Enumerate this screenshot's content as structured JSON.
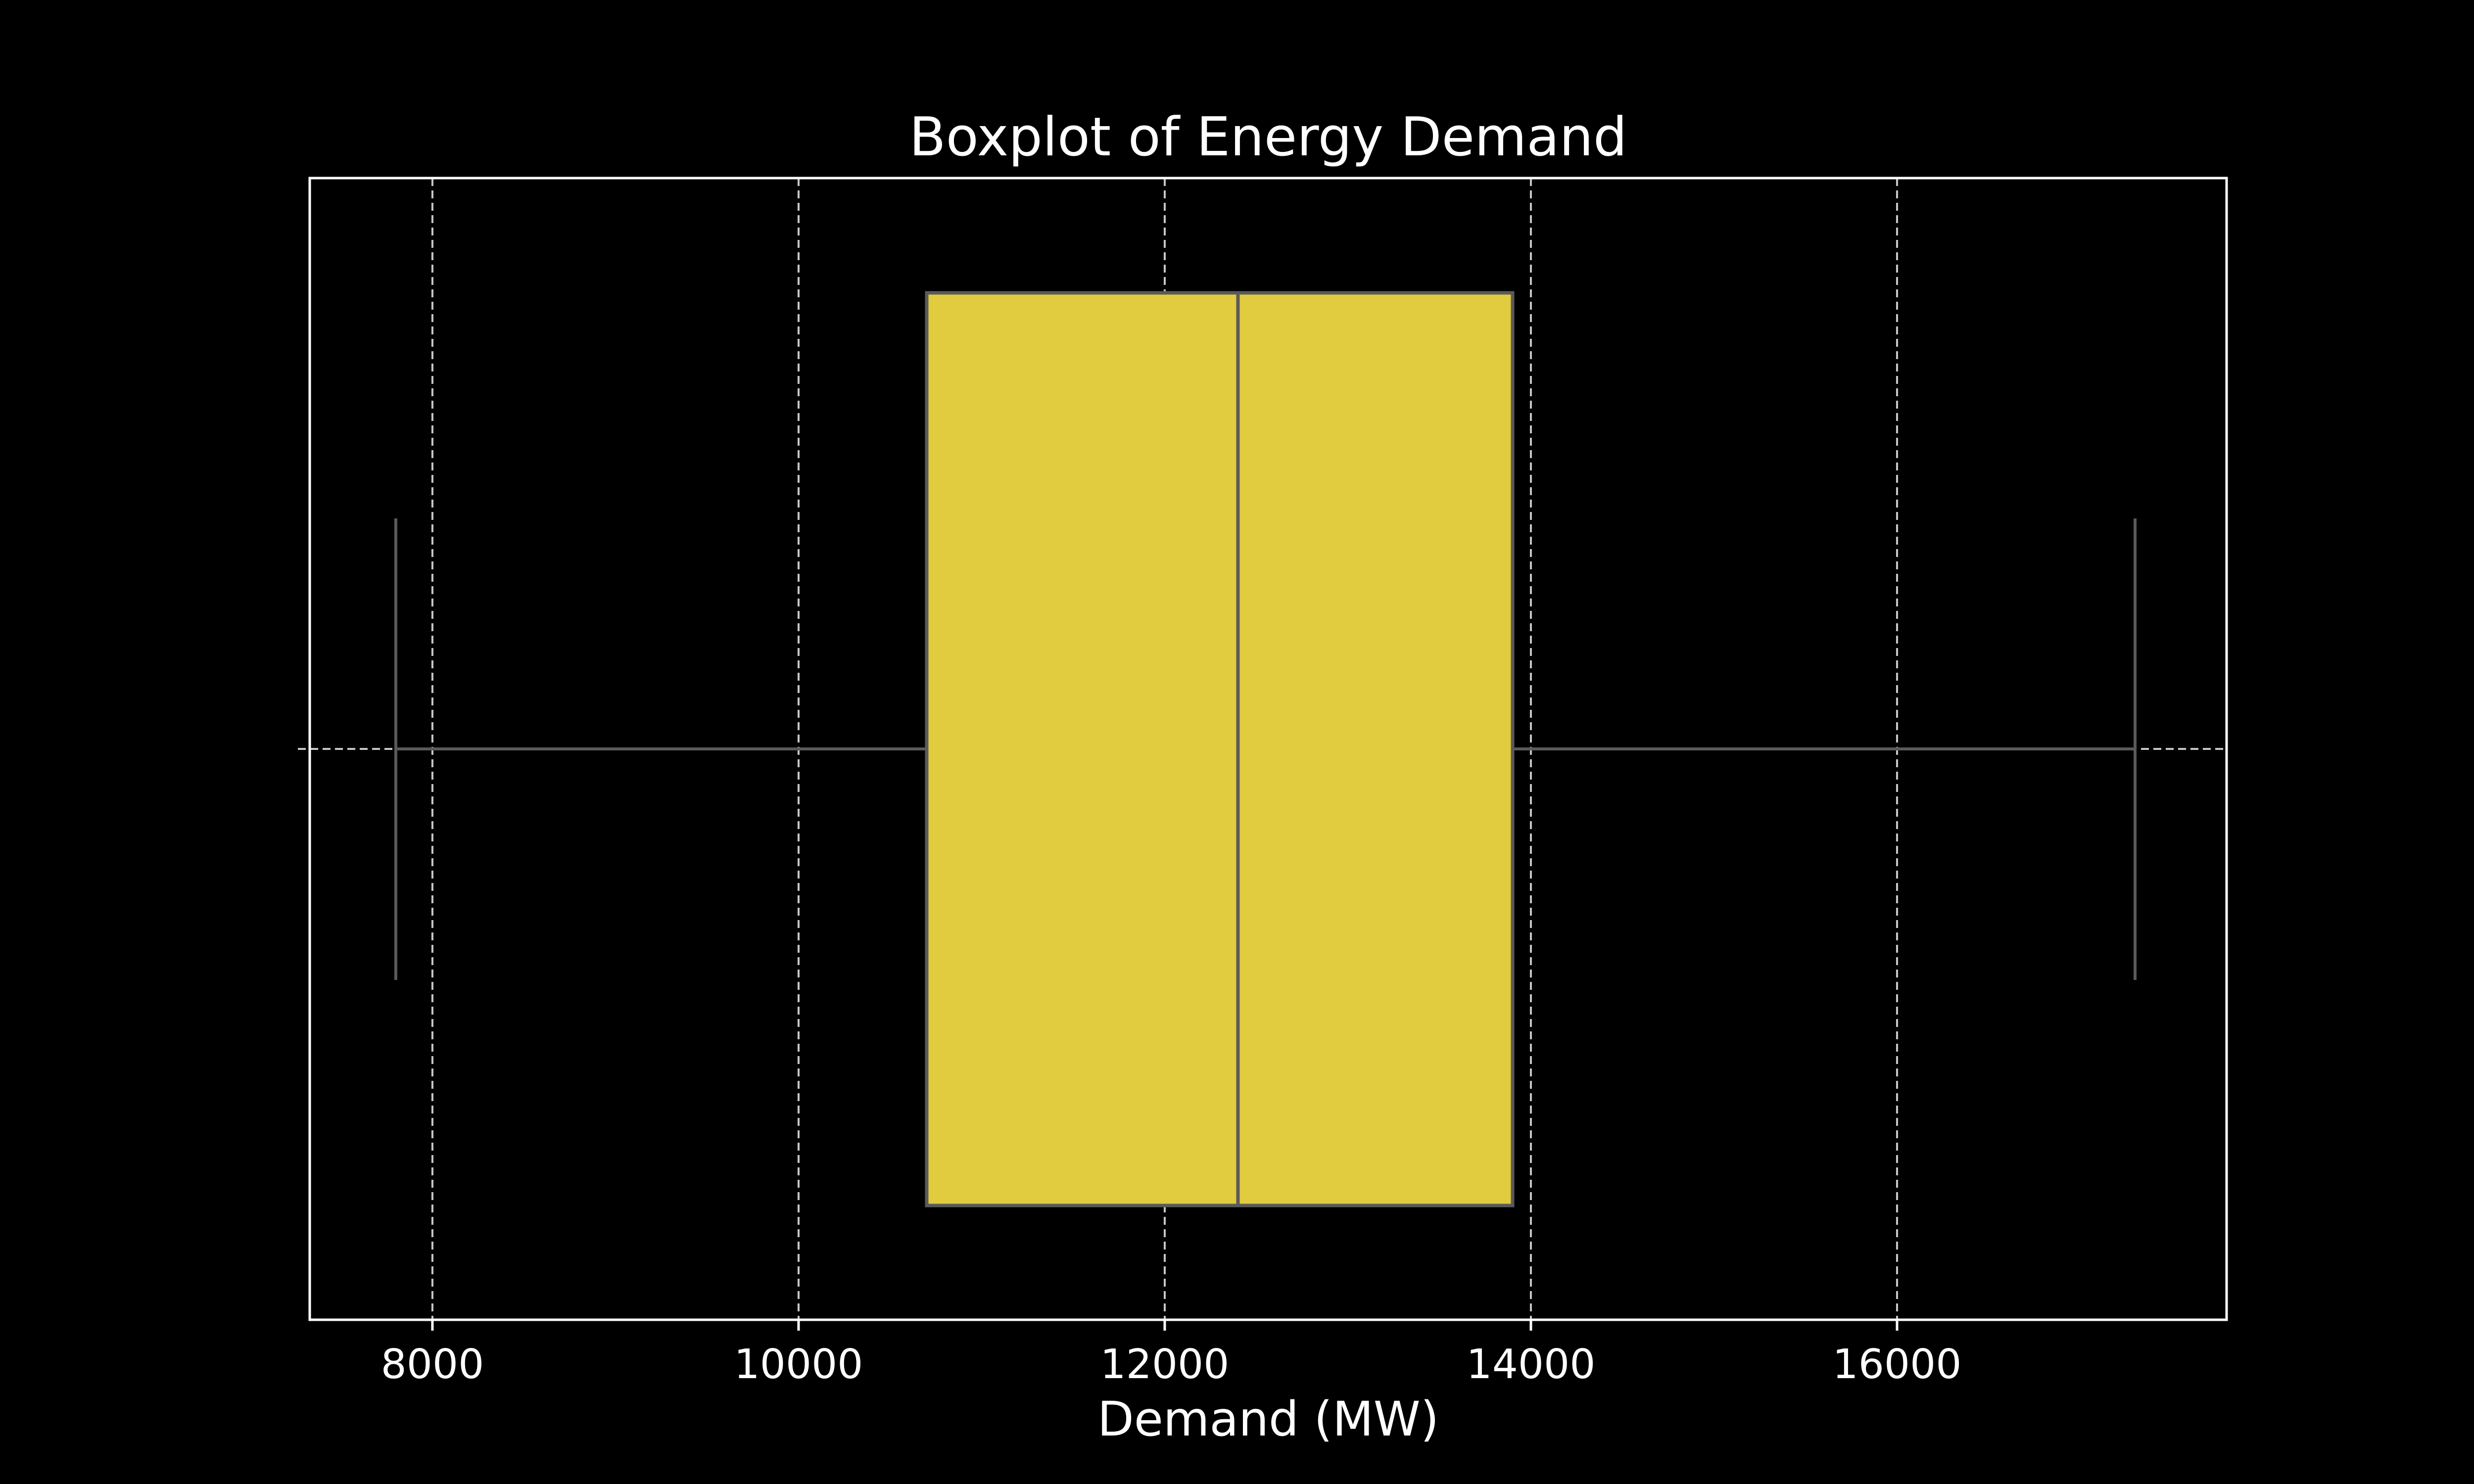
{
  "chart_data": {
    "type": "boxplot",
    "title": "Boxplot of  Energy Demand",
    "xlabel": "Demand (MW)",
    "ylabel": "",
    "xlim": [
      7330,
      17800
    ],
    "xticks": [
      8000,
      10000,
      12000,
      14000,
      16000
    ],
    "tick_labels": [
      "8000",
      "10000",
      "12000",
      "14000",
      "16000"
    ],
    "grid": true,
    "box": {
      "whisker_low": 7800,
      "q1": 10700,
      "median": 12400,
      "q3": 13900,
      "whisker_high": 17300
    },
    "colors": {
      "background": "#000000",
      "box_fill": "#e1cb3f",
      "box_edge": "#5a5a5a",
      "text": "#ffffff",
      "grid": "#c8c8c8"
    }
  }
}
